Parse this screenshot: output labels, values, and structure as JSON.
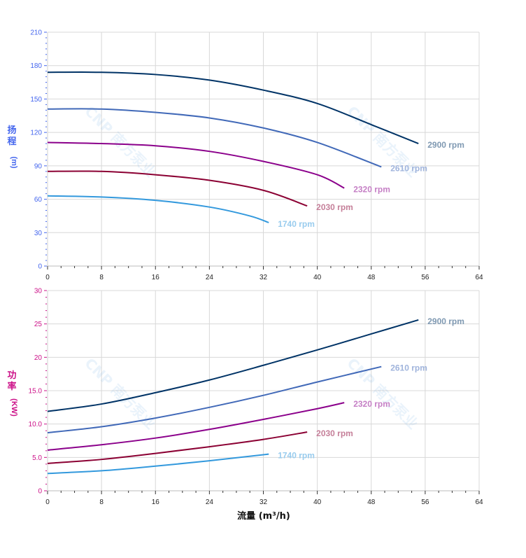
{
  "watermark": "CNP 南方泵业",
  "chart_data": [
    {
      "type": "line",
      "ylabel_chars": [
        "扬",
        "程"
      ],
      "ylabel_unit": "(m)",
      "axis_color": "#4466ee",
      "xlim": [
        0,
        64
      ],
      "ylim": [
        0,
        210
      ],
      "xticks": [
        0,
        8,
        16,
        24,
        32,
        40,
        48,
        56,
        64
      ],
      "yticks": [
        0,
        30,
        60,
        90,
        120,
        150,
        180,
        210
      ],
      "ytick_labels": [
        "0",
        "30",
        "60",
        "90",
        "120",
        "150",
        "180",
        "210"
      ],
      "grid": true,
      "series": [
        {
          "name": "2900 rpm",
          "color": "#003366",
          "label_color": "#7f99b2",
          "x": [
            0,
            8,
            16,
            24,
            32,
            40,
            48,
            55
          ],
          "y": [
            174,
            174,
            172,
            167,
            158,
            146,
            127,
            110
          ]
        },
        {
          "name": "2610 rpm",
          "color": "#4169b8",
          "label_color": "#a0b4dc",
          "x": [
            0,
            8,
            16,
            24,
            32,
            40,
            49.5
          ],
          "y": [
            141,
            141,
            138,
            133,
            124,
            111,
            89
          ]
        },
        {
          "name": "2320 rpm",
          "color": "#8b008b",
          "label_color": "#c57fc5",
          "x": [
            0,
            8,
            16,
            24,
            32,
            40,
            44
          ],
          "y": [
            111,
            110,
            108,
            103,
            94,
            82,
            70
          ]
        },
        {
          "name": "2030 rpm",
          "color": "#8b0033",
          "label_color": "#c57f99",
          "x": [
            0,
            8,
            16,
            24,
            32,
            38.5
          ],
          "y": [
            85,
            85,
            82,
            77,
            68,
            54
          ]
        },
        {
          "name": "1740 rpm",
          "color": "#3399dd",
          "label_color": "#99ccee",
          "x": [
            0,
            8,
            16,
            24,
            30,
            32.8
          ],
          "y": [
            63,
            62,
            59,
            53,
            45,
            39
          ]
        }
      ]
    },
    {
      "type": "line",
      "ylabel_chars": [
        "功",
        "率"
      ],
      "ylabel_unit": "(KW)",
      "axis_color": "#cc1188",
      "xlabel": "流量 (m³/h)",
      "xlim": [
        0,
        64
      ],
      "ylim": [
        0,
        30
      ],
      "xticks": [
        0,
        8,
        16,
        24,
        32,
        40,
        48,
        56,
        64
      ],
      "yticks": [
        0,
        5,
        10,
        15,
        20,
        25,
        30
      ],
      "ytick_labels": [
        "0",
        "5.0",
        "10.0",
        "15.0",
        "20",
        "25",
        "30"
      ],
      "grid": true,
      "series": [
        {
          "name": "2900 rpm",
          "color": "#003366",
          "label_color": "#7f99b2",
          "x": [
            0,
            8,
            16,
            24,
            32,
            40,
            48,
            55
          ],
          "y": [
            11.9,
            13.0,
            14.7,
            16.6,
            18.8,
            21.1,
            23.5,
            25.6
          ]
        },
        {
          "name": "2610 rpm",
          "color": "#4169b8",
          "label_color": "#a0b4dc",
          "x": [
            0,
            8,
            16,
            24,
            32,
            40,
            49.5
          ],
          "y": [
            8.7,
            9.6,
            10.9,
            12.5,
            14.3,
            16.3,
            18.6
          ]
        },
        {
          "name": "2320 rpm",
          "color": "#8b008b",
          "label_color": "#c57fc5",
          "x": [
            0,
            8,
            16,
            24,
            32,
            40,
            44
          ],
          "y": [
            6.1,
            6.9,
            7.9,
            9.2,
            10.7,
            12.3,
            13.2
          ]
        },
        {
          "name": "2030 rpm",
          "color": "#8b0033",
          "label_color": "#c57f99",
          "x": [
            0,
            8,
            16,
            24,
            32,
            38.5
          ],
          "y": [
            4.1,
            4.7,
            5.6,
            6.6,
            7.7,
            8.8
          ]
        },
        {
          "name": "1740 rpm",
          "color": "#3399dd",
          "label_color": "#99ccee",
          "x": [
            0,
            8,
            16,
            24,
            32.8
          ],
          "y": [
            2.6,
            3.0,
            3.7,
            4.5,
            5.5
          ]
        }
      ]
    }
  ]
}
